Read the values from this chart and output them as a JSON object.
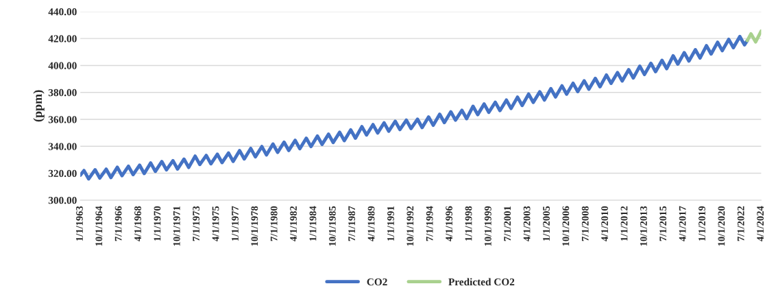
{
  "chart_data": {
    "type": "line",
    "ylabel": "(ppm)",
    "series": [
      {
        "name": "CO2",
        "color": "#4472c4",
        "x": [
          "1963-01",
          "1963-05",
          "1963-10",
          "1964-05",
          "1964-10",
          "1965-05",
          "1965-10",
          "1966-05",
          "1966-10",
          "1967-05",
          "1967-10",
          "1968-05",
          "1968-10",
          "1969-05",
          "1969-10",
          "1970-05",
          "1970-10",
          "1971-05",
          "1971-10",
          "1972-05",
          "1972-10",
          "1973-05",
          "1973-10",
          "1974-05",
          "1974-10",
          "1975-05",
          "1975-10",
          "1976-05",
          "1976-10",
          "1977-05",
          "1977-10",
          "1978-05",
          "1978-10",
          "1979-05",
          "1979-10",
          "1980-05",
          "1980-10",
          "1981-05",
          "1981-10",
          "1982-05",
          "1982-10",
          "1983-05",
          "1983-10",
          "1984-05",
          "1984-10",
          "1985-05",
          "1985-10",
          "1986-05",
          "1986-10",
          "1987-05",
          "1987-10",
          "1988-05",
          "1988-10",
          "1989-05",
          "1989-10",
          "1990-05",
          "1990-10",
          "1991-05",
          "1991-10",
          "1992-05",
          "1992-10",
          "1993-05",
          "1993-10",
          "1994-05",
          "1994-10",
          "1995-05",
          "1995-10",
          "1996-05",
          "1996-10",
          "1997-05",
          "1997-10",
          "1998-05",
          "1998-10",
          "1999-05",
          "1999-10",
          "2000-05",
          "2000-10",
          "2001-05",
          "2001-10",
          "2002-05",
          "2002-10",
          "2003-05",
          "2003-10",
          "2004-05",
          "2004-10",
          "2005-05",
          "2005-10",
          "2006-05",
          "2006-10",
          "2007-05",
          "2007-10",
          "2008-05",
          "2008-10",
          "2009-05",
          "2009-10",
          "2010-05",
          "2010-10",
          "2011-05",
          "2011-10",
          "2012-05",
          "2012-10",
          "2013-05",
          "2013-10",
          "2014-05",
          "2014-10",
          "2015-05",
          "2015-10",
          "2016-05",
          "2016-10",
          "2017-05",
          "2017-10",
          "2018-05",
          "2018-10",
          "2019-05",
          "2019-10",
          "2020-05",
          "2020-10",
          "2021-05",
          "2021-10",
          "2022-05",
          "2022-10",
          "2023-01"
        ],
        "values": [
          318.5,
          322.0,
          315.8,
          322.6,
          316.4,
          323.0,
          316.8,
          324.4,
          318.2,
          325.2,
          319.0,
          326.0,
          319.8,
          327.6,
          321.4,
          328.7,
          322.5,
          329.3,
          323.1,
          330.5,
          324.3,
          332.7,
          326.5,
          333.2,
          327.0,
          334.1,
          327.9,
          335.0,
          328.8,
          336.8,
          330.6,
          338.4,
          332.2,
          339.8,
          333.6,
          341.7,
          335.5,
          343.1,
          336.9,
          344.4,
          338.2,
          346.0,
          339.8,
          347.6,
          341.4,
          349.0,
          342.8,
          350.4,
          344.2,
          352.2,
          346.0,
          354.6,
          348.4,
          356.1,
          349.9,
          357.4,
          351.2,
          358.6,
          352.4,
          359.4,
          353.2,
          360.1,
          353.9,
          361.8,
          355.6,
          363.8,
          357.6,
          365.6,
          359.4,
          366.7,
          360.5,
          369.7,
          363.5,
          371.4,
          365.2,
          372.7,
          366.5,
          374.3,
          368.1,
          376.5,
          370.3,
          378.8,
          372.6,
          380.5,
          374.3,
          382.8,
          376.6,
          384.9,
          378.7,
          386.8,
          380.6,
          388.6,
          382.4,
          390.4,
          384.2,
          392.9,
          386.7,
          394.7,
          388.5,
          396.9,
          390.7,
          399.5,
          393.3,
          401.6,
          395.4,
          403.8,
          397.6,
          407.2,
          401.0,
          409.5,
          403.3,
          411.7,
          405.5,
          414.7,
          408.5,
          417.2,
          411.0,
          419.4,
          413.2,
          421.5,
          415.3,
          418.5
        ]
      },
      {
        "name": "Predicted CO2",
        "color": "#a9d18e",
        "x": [
          "2023-01",
          "2023-05",
          "2023-10",
          "2024-04"
        ],
        "values": [
          418.5,
          423.5,
          417.5,
          425.5
        ]
      }
    ],
    "xlim": [
      "1963-01",
      "2024-04"
    ],
    "xticks": [
      {
        "value": "1963-01",
        "label": "1/1/1963"
      },
      {
        "value": "1964-10",
        "label": "10/1/1964"
      },
      {
        "value": "1966-07",
        "label": "7/1/1966"
      },
      {
        "value": "1968-04",
        "label": "4/1/1968"
      },
      {
        "value": "1970-01",
        "label": "1/1/1970"
      },
      {
        "value": "1971-10",
        "label": "10/1/1971"
      },
      {
        "value": "1973-07",
        "label": "7/1/1973"
      },
      {
        "value": "1975-04",
        "label": "4/1/1975"
      },
      {
        "value": "1977-01",
        "label": "1/1/1977"
      },
      {
        "value": "1978-10",
        "label": "10/1/1978"
      },
      {
        "value": "1980-07",
        "label": "7/1/1980"
      },
      {
        "value": "1982-04",
        "label": "4/1/1982"
      },
      {
        "value": "1984-01",
        "label": "1/1/1984"
      },
      {
        "value": "1985-10",
        "label": "10/1/1985"
      },
      {
        "value": "1987-07",
        "label": "7/1/1987"
      },
      {
        "value": "1989-04",
        "label": "4/1/1989"
      },
      {
        "value": "1991-01",
        "label": "1/1/1991"
      },
      {
        "value": "1992-10",
        "label": "10/1/1992"
      },
      {
        "value": "1994-07",
        "label": "7/1/1994"
      },
      {
        "value": "1996-04",
        "label": "4/1/1996"
      },
      {
        "value": "1998-01",
        "label": "1/1/1998"
      },
      {
        "value": "1999-10",
        "label": "10/1/1999"
      },
      {
        "value": "2001-07",
        "label": "7/1/2001"
      },
      {
        "value": "2003-04",
        "label": "4/1/2003"
      },
      {
        "value": "2005-01",
        "label": "1/1/2005"
      },
      {
        "value": "2006-10",
        "label": "10/1/2006"
      },
      {
        "value": "2008-07",
        "label": "7/1/2008"
      },
      {
        "value": "2010-04",
        "label": "4/1/2010"
      },
      {
        "value": "2012-01",
        "label": "1/1/2012"
      },
      {
        "value": "2013-10",
        "label": "10/1/2013"
      },
      {
        "value": "2015-07",
        "label": "7/1/2015"
      },
      {
        "value": "2017-04",
        "label": "4/1/2017"
      },
      {
        "value": "2019-01",
        "label": "1/1/2019"
      },
      {
        "value": "2020-10",
        "label": "10/1/2020"
      },
      {
        "value": "2022-07",
        "label": "7/1/2022"
      },
      {
        "value": "2024-04",
        "label": "4/1/2024"
      }
    ],
    "ylim": [
      300,
      440
    ],
    "yticks": [
      {
        "value": 300,
        "label": "300.00"
      },
      {
        "value": 320,
        "label": "320.00"
      },
      {
        "value": 340,
        "label": "340.00"
      },
      {
        "value": 360,
        "label": "360.00"
      },
      {
        "value": 380,
        "label": "380.00"
      },
      {
        "value": 400,
        "label": "400.00"
      },
      {
        "value": 420,
        "label": "420.00"
      },
      {
        "value": 440,
        "label": "440.00"
      }
    ],
    "grid": "y",
    "legend": "bottom",
    "marker": "none",
    "line_style": "solid"
  }
}
